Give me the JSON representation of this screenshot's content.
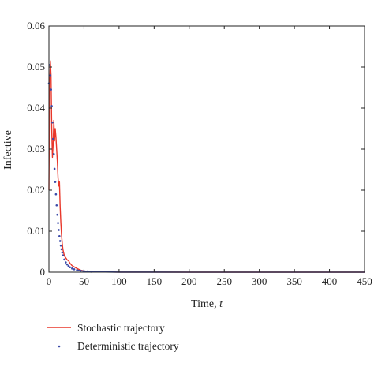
{
  "chart_data": {
    "type": "line",
    "xlabel_main": "Time, ",
    "xlabel_var": "t",
    "ylabel": "Infective",
    "xlim": [
      0,
      450
    ],
    "ylim": [
      0,
      0.06
    ],
    "xticks": [
      "0",
      "50",
      "100",
      "150",
      "200",
      "250",
      "300",
      "350",
      "400",
      "450"
    ],
    "yticks": [
      "0",
      "0.01",
      "0.02",
      "0.03",
      "0.04",
      "0.05",
      "0.06"
    ],
    "grid": false,
    "legend_position": "bottom-left, below plot",
    "series": [
      {
        "name": "Stochastic trajectory",
        "style": "solid-line",
        "color": "#e8372a",
        "x": [
          0,
          1,
          2,
          3,
          4,
          5,
          6,
          7,
          8,
          9,
          10,
          11,
          12,
          13,
          14,
          15,
          16,
          17,
          18,
          19,
          20,
          22,
          24,
          26,
          28,
          30,
          33,
          36,
          40,
          45,
          50,
          55,
          60,
          65,
          70,
          80,
          90,
          100,
          120,
          150,
          200,
          250,
          300,
          350,
          400,
          450
        ],
        "y": [
          0.02,
          0.045,
          0.0515,
          0.048,
          0.035,
          0.028,
          0.031,
          0.037,
          0.032,
          0.035,
          0.033,
          0.03,
          0.027,
          0.023,
          0.021,
          0.022,
          0.016,
          0.012,
          0.009,
          0.007,
          0.0055,
          0.004,
          0.0035,
          0.003,
          0.0028,
          0.0022,
          0.0016,
          0.0013,
          0.0009,
          0.0005,
          0.0003,
          0.0002,
          0.00015,
          0.0001,
          8e-05,
          5e-05,
          3e-05,
          2e-05,
          1e-05,
          5e-06,
          0.0,
          0.0,
          0.0,
          0.0,
          0.0,
          0.0
        ]
      },
      {
        "name": "Deterministic trajectory",
        "style": "dotted",
        "color": "#3b4aa8",
        "x": [
          0,
          1,
          2,
          3,
          4,
          5,
          6,
          7,
          8,
          9,
          10,
          11,
          12,
          13,
          14,
          15,
          16,
          17,
          18,
          19,
          20,
          22,
          24,
          26,
          28,
          30,
          33,
          36,
          40,
          45,
          50,
          55,
          60,
          70,
          80,
          90,
          100,
          120,
          150,
          200,
          250,
          300,
          350,
          400,
          450
        ],
        "y": [
          0.046,
          0.0505,
          0.048,
          0.0445,
          0.0405,
          0.0365,
          0.0325,
          0.0288,
          0.0252,
          0.022,
          0.019,
          0.0163,
          0.014,
          0.012,
          0.0103,
          0.0088,
          0.0076,
          0.0065,
          0.0056,
          0.0048,
          0.0041,
          0.0031,
          0.0024,
          0.0019,
          0.0015,
          0.0012,
          0.0009,
          0.0007,
          0.0005,
          0.00035,
          0.00025,
          0.00018,
          0.00013,
          8e-05,
          5e-05,
          3e-05,
          2e-05,
          1e-05,
          5e-06,
          0.0,
          0.0,
          0.0,
          0.0,
          0.0,
          0.0
        ]
      }
    ]
  }
}
